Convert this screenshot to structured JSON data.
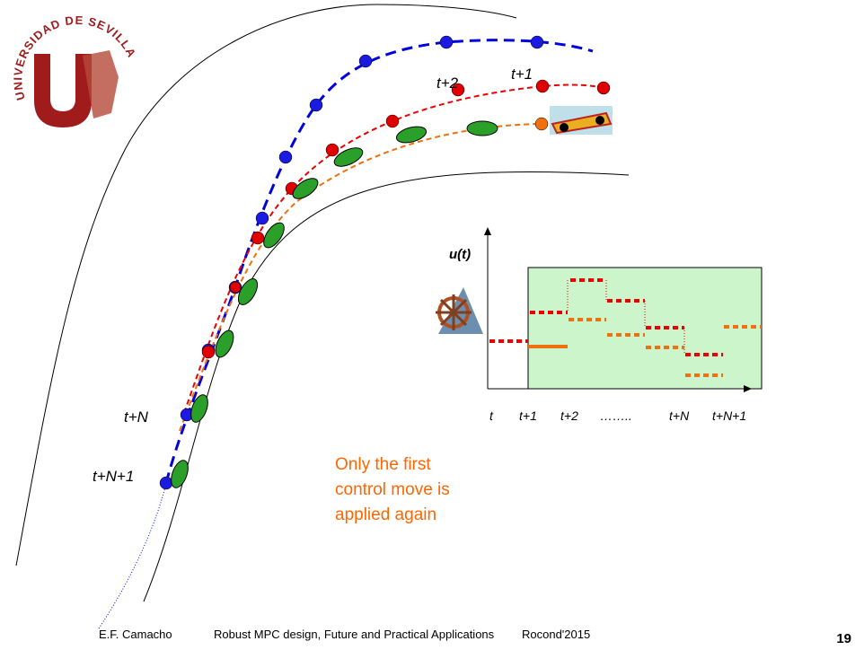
{
  "logo": {
    "text": "UNIVERSIDAD DE SEVILLA"
  },
  "trajectory_labels": {
    "t1": "t+1",
    "t2": "t+2",
    "tN": "t+N",
    "tN1": "t+N+1"
  },
  "control_plot": {
    "ylabel": "u(t)",
    "xlabels": [
      "t",
      "t+1",
      "t+2",
      "……..",
      "t+N",
      "t+N+1"
    ]
  },
  "caption": [
    "Only the first",
    "control move is",
    "applied again"
  ],
  "footer": {
    "author": "E.F. Camacho",
    "title": "Robust MPC design, Future and Practical Applications",
    "event": "Rocond'2015",
    "page": "19"
  }
}
